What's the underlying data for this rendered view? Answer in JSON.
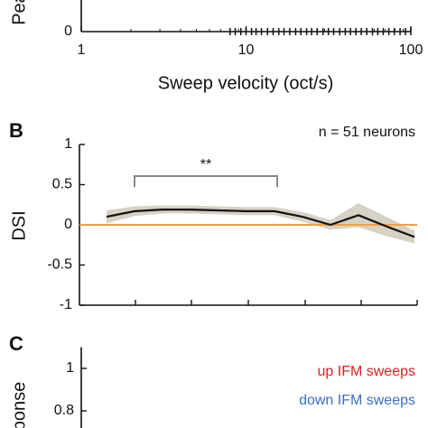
{
  "chart_data": [
    {
      "type": "rug",
      "ylabel": "Pea",
      "xlabel": "Sweep velocity (oct/s)",
      "xscale": "log",
      "xlim": [
        1,
        100
      ],
      "xticks": [
        1,
        10,
        100
      ],
      "ylim": [
        0,
        1
      ],
      "yticks": [
        0
      ],
      "x": [
        8,
        8.6,
        9.3,
        10,
        10.8,
        11.5,
        12.4,
        13.5,
        14.6,
        15.8,
        17,
        18.4,
        20,
        21.5,
        23.3,
        25,
        27,
        29.3,
        31.6,
        34,
        37,
        40,
        43,
        46.4,
        50,
        54,
        58.5,
        63,
        68,
        73.5,
        79.4,
        86,
        92.8,
        100
      ],
      "color": "#111111"
    },
    {
      "type": "line",
      "panel": "B",
      "ylabel": "DSI",
      "annotation": "n = 51 neurons",
      "significance": "**",
      "ylim": [
        -1,
        1
      ],
      "yticks": [
        1,
        0.5,
        0,
        -0.5,
        -1
      ],
      "values": [
        0.1,
        0.17,
        0.19,
        0.19,
        0.18,
        0.17,
        0.17,
        0.1,
        0.0,
        0.12,
        -0.02,
        -0.15
      ],
      "errors": [
        0.08,
        0.06,
        0.05,
        0.05,
        0.05,
        0.05,
        0.05,
        0.06,
        0.06,
        0.15,
        0.12,
        0.08
      ],
      "color": "#111111",
      "band_color": "#d6d2c4",
      "reference_line": 0,
      "reference_color": "#f0a040"
    },
    {
      "type": "legend-only",
      "panel": "C",
      "ylabel": "ponse",
      "ylim": [
        0.6,
        1.1
      ],
      "yticks": [
        1,
        0.8
      ],
      "series": [
        {
          "name": "up IFM sweeps",
          "color": "#e02020"
        },
        {
          "name": "down IFM sweeps",
          "color": "#3a6ec8"
        }
      ]
    }
  ]
}
